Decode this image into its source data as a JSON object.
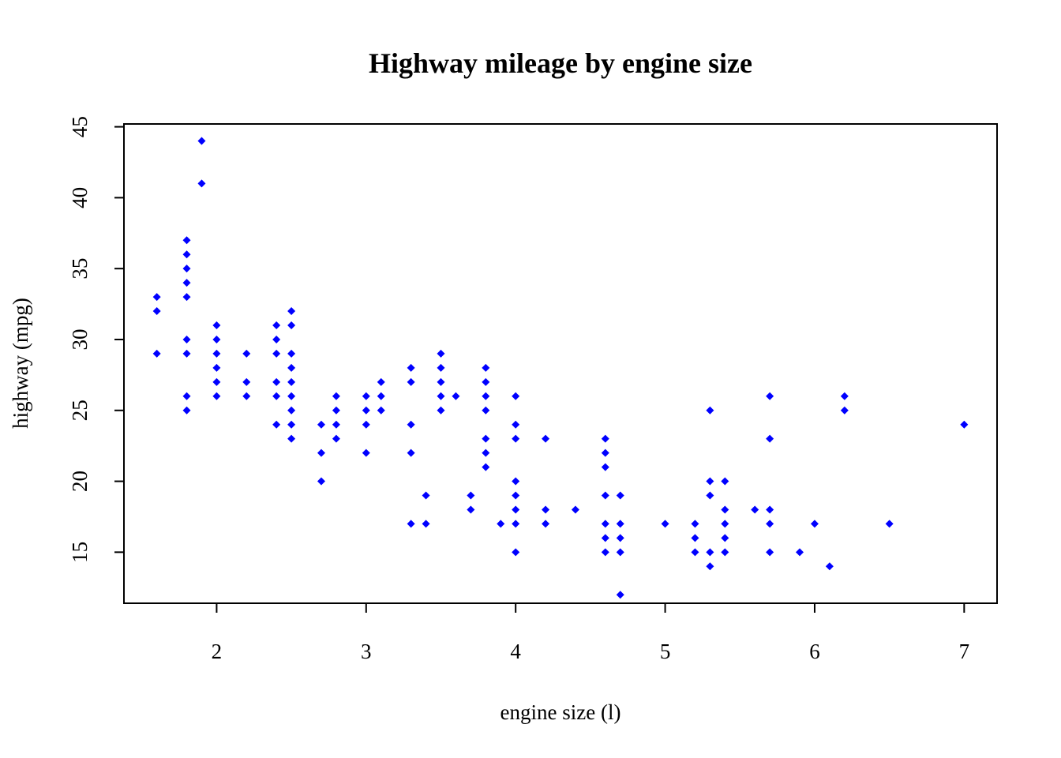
{
  "chart_data": {
    "type": "scatter",
    "title": "Highway mileage by engine size",
    "xlabel": "engine size (l)",
    "ylabel": "highway (mpg)",
    "xlim": [
      1.38,
      7.22
    ],
    "ylim": [
      11.4,
      45.2
    ],
    "x_ticks": [
      2,
      3,
      4,
      5,
      6,
      7
    ],
    "y_ticks": [
      15,
      20,
      25,
      30,
      35,
      40,
      45
    ],
    "marker_color": "#0000ff",
    "grid": false,
    "points": [
      [
        1.6,
        33
      ],
      [
        1.6,
        32
      ],
      [
        1.6,
        29
      ],
      [
        1.8,
        37
      ],
      [
        1.8,
        36
      ],
      [
        1.8,
        35
      ],
      [
        1.8,
        34
      ],
      [
        1.8,
        33
      ],
      [
        1.8,
        30
      ],
      [
        1.8,
        29
      ],
      [
        1.8,
        26
      ],
      [
        1.8,
        25
      ],
      [
        1.9,
        44
      ],
      [
        1.9,
        41
      ],
      [
        2.0,
        31
      ],
      [
        2.0,
        30
      ],
      [
        2.0,
        29
      ],
      [
        2.0,
        28
      ],
      [
        2.0,
        27
      ],
      [
        2.0,
        26
      ],
      [
        2.2,
        29
      ],
      [
        2.2,
        27
      ],
      [
        2.2,
        26
      ],
      [
        2.4,
        31
      ],
      [
        2.4,
        30
      ],
      [
        2.4,
        29
      ],
      [
        2.4,
        27
      ],
      [
        2.4,
        26
      ],
      [
        2.4,
        24
      ],
      [
        2.5,
        32
      ],
      [
        2.5,
        31
      ],
      [
        2.5,
        29
      ],
      [
        2.5,
        28
      ],
      [
        2.5,
        27
      ],
      [
        2.5,
        26
      ],
      [
        2.5,
        25
      ],
      [
        2.5,
        24
      ],
      [
        2.5,
        23
      ],
      [
        2.7,
        24
      ],
      [
        2.7,
        22
      ],
      [
        2.7,
        20
      ],
      [
        2.8,
        26
      ],
      [
        2.8,
        25
      ],
      [
        2.8,
        24
      ],
      [
        2.8,
        23
      ],
      [
        3.0,
        26
      ],
      [
        3.0,
        25
      ],
      [
        3.0,
        24
      ],
      [
        3.0,
        22
      ],
      [
        3.1,
        27
      ],
      [
        3.1,
        26
      ],
      [
        3.1,
        25
      ],
      [
        3.3,
        28
      ],
      [
        3.3,
        27
      ],
      [
        3.3,
        24
      ],
      [
        3.3,
        22
      ],
      [
        3.3,
        17
      ],
      [
        3.4,
        19
      ],
      [
        3.4,
        17
      ],
      [
        3.5,
        29
      ],
      [
        3.5,
        28
      ],
      [
        3.5,
        27
      ],
      [
        3.5,
        26
      ],
      [
        3.5,
        25
      ],
      [
        3.6,
        26
      ],
      [
        3.7,
        19
      ],
      [
        3.7,
        18
      ],
      [
        3.8,
        28
      ],
      [
        3.8,
        27
      ],
      [
        3.8,
        26
      ],
      [
        3.8,
        25
      ],
      [
        3.8,
        23
      ],
      [
        3.8,
        22
      ],
      [
        3.8,
        21
      ],
      [
        3.9,
        17
      ],
      [
        4.0,
        26
      ],
      [
        4.0,
        24
      ],
      [
        4.0,
        23
      ],
      [
        4.0,
        20
      ],
      [
        4.0,
        19
      ],
      [
        4.0,
        18
      ],
      [
        4.0,
        17
      ],
      [
        4.0,
        15
      ],
      [
        4.2,
        23
      ],
      [
        4.2,
        18
      ],
      [
        4.2,
        17
      ],
      [
        4.4,
        18
      ],
      [
        4.6,
        23
      ],
      [
        4.6,
        22
      ],
      [
        4.6,
        21
      ],
      [
        4.6,
        19
      ],
      [
        4.6,
        17
      ],
      [
        4.6,
        16
      ],
      [
        4.6,
        15
      ],
      [
        4.7,
        19
      ],
      [
        4.7,
        17
      ],
      [
        4.7,
        16
      ],
      [
        4.7,
        15
      ],
      [
        4.7,
        12
      ],
      [
        5.0,
        17
      ],
      [
        5.2,
        17
      ],
      [
        5.2,
        16
      ],
      [
        5.2,
        15
      ],
      [
        5.3,
        25
      ],
      [
        5.3,
        20
      ],
      [
        5.3,
        19
      ],
      [
        5.3,
        15
      ],
      [
        5.3,
        14
      ],
      [
        5.4,
        20
      ],
      [
        5.4,
        18
      ],
      [
        5.4,
        17
      ],
      [
        5.4,
        16
      ],
      [
        5.4,
        15
      ],
      [
        5.6,
        18
      ],
      [
        5.7,
        26
      ],
      [
        5.7,
        23
      ],
      [
        5.7,
        18
      ],
      [
        5.7,
        17
      ],
      [
        5.7,
        15
      ],
      [
        5.9,
        15
      ],
      [
        6.0,
        17
      ],
      [
        6.1,
        14
      ],
      [
        6.2,
        26
      ],
      [
        6.2,
        25
      ],
      [
        6.5,
        17
      ],
      [
        7.0,
        24
      ]
    ]
  }
}
